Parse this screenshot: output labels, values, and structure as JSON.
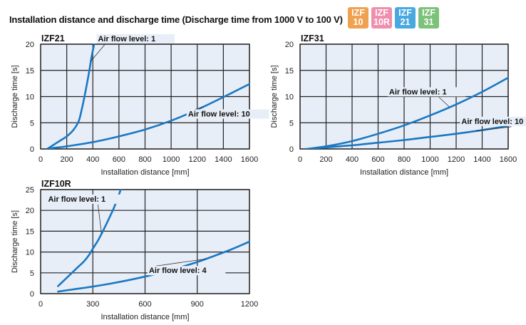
{
  "header": {
    "title": "Installation distance and discharge time (Discharge time from 1000 V to 100 V)",
    "badges": [
      {
        "line1": "IZF",
        "line2": "10",
        "color": "#f0a14f"
      },
      {
        "line1": "IZF",
        "line2": "10R",
        "color": "#ef8fae"
      },
      {
        "line1": "IZF",
        "line2": "21",
        "color": "#4aa8e0"
      },
      {
        "line1": "IZF",
        "line2": "31",
        "color": "#7cc27a"
      }
    ]
  },
  "chart_data": [
    {
      "type": "line",
      "title": "IZF21",
      "xlabel": "Installation distance [mm]",
      "ylabel": "Discharge time [s]",
      "xlim": [
        0,
        1600
      ],
      "ylim": [
        0,
        20
      ],
      "xticks": [
        "0",
        "200",
        "400",
        "600",
        "800",
        "1000",
        "1200",
        "1400",
        "1600"
      ],
      "yticks": [
        "0",
        "5",
        "10",
        "15",
        "20"
      ],
      "grid": true,
      "series": [
        {
          "name": "Air flow level: 1",
          "x": [
            50,
            100,
            150,
            200,
            250,
            290,
            310,
            340,
            370,
            390,
            410
          ],
          "y": [
            0,
            0.8,
            1.6,
            2.4,
            3.6,
            5.2,
            7,
            10.5,
            14.5,
            17.5,
            20
          ]
        },
        {
          "name": "Air flow level: 10",
          "x": [
            50,
            100,
            200,
            400,
            600,
            800,
            1000,
            1200,
            1400,
            1600
          ],
          "y": [
            0,
            0.2,
            0.5,
            1.3,
            2.4,
            3.7,
            5.4,
            7.5,
            9.9,
            12.4
          ]
        }
      ],
      "annotations": [
        {
          "text": "Air flow level: 1",
          "series": 0,
          "at_x": 385
        },
        {
          "text": "Air flow level: 10",
          "series": 1,
          "at_x": 1250
        }
      ]
    },
    {
      "type": "line",
      "title": "IZF31",
      "xlabel": "Installation distance [mm]",
      "ylabel": "Discharge time [s]",
      "xlim": [
        0,
        1600
      ],
      "ylim": [
        0,
        20
      ],
      "xticks": [
        "0",
        "200",
        "400",
        "600",
        "800",
        "1000",
        "1200",
        "1400",
        "1600"
      ],
      "yticks": [
        "0",
        "5",
        "10",
        "15",
        "20"
      ],
      "grid": true,
      "series": [
        {
          "name": "Air flow level: 1",
          "x": [
            50,
            200,
            400,
            600,
            800,
            1000,
            1200,
            1400,
            1600
          ],
          "y": [
            0,
            0.5,
            1.5,
            2.9,
            4.5,
            6.4,
            8.5,
            10.9,
            13.6
          ]
        },
        {
          "name": "Air flow level: 10",
          "x": [
            50,
            200,
            400,
            600,
            800,
            1000,
            1200,
            1400,
            1600
          ],
          "y": [
            0,
            0.3,
            0.7,
            1.2,
            1.7,
            2.3,
            2.9,
            3.6,
            4.4
          ]
        }
      ],
      "annotations": [
        {
          "text": "Air flow level: 1",
          "series": 0,
          "at_x": 1150
        },
        {
          "text": "Air flow level: 10",
          "series": 1,
          "at_x": 1350
        }
      ]
    },
    {
      "type": "line",
      "title": "IZF10R",
      "xlabel": "Installation distance [mm]",
      "ylabel": "Discharge time [s]",
      "xlim": [
        0,
        1200
      ],
      "ylim": [
        0,
        25
      ],
      "xticks": [
        "0",
        "300",
        "600",
        "900",
        "1200"
      ],
      "yticks": [
        "0",
        "5",
        "10",
        "15",
        "20",
        "25"
      ],
      "grid": true,
      "series": [
        {
          "name": "Air flow level: 1",
          "x": [
            100,
            140,
            180,
            220,
            250,
            280,
            300,
            330,
            360,
            390,
            420,
            445,
            460
          ],
          "y": [
            1.8,
            3.4,
            5,
            6.6,
            7.8,
            9.4,
            10.8,
            12.8,
            15.2,
            17.8,
            20.5,
            23.2,
            25
          ]
        },
        {
          "name": "Air flow level: 4",
          "x": [
            100,
            200,
            300,
            400,
            500,
            600,
            700,
            800,
            900,
            1000,
            1100,
            1200
          ],
          "y": [
            0.5,
            1.1,
            1.7,
            2.4,
            3.2,
            4.1,
            5.1,
            6.3,
            7.6,
            9.1,
            10.7,
            12.5
          ]
        }
      ],
      "annotations": [
        {
          "text": "Air flow level: 1",
          "series": 0,
          "at_x": 350
        },
        {
          "text": "Air flow level: 4",
          "series": 1,
          "at_x": 950
        }
      ]
    }
  ]
}
